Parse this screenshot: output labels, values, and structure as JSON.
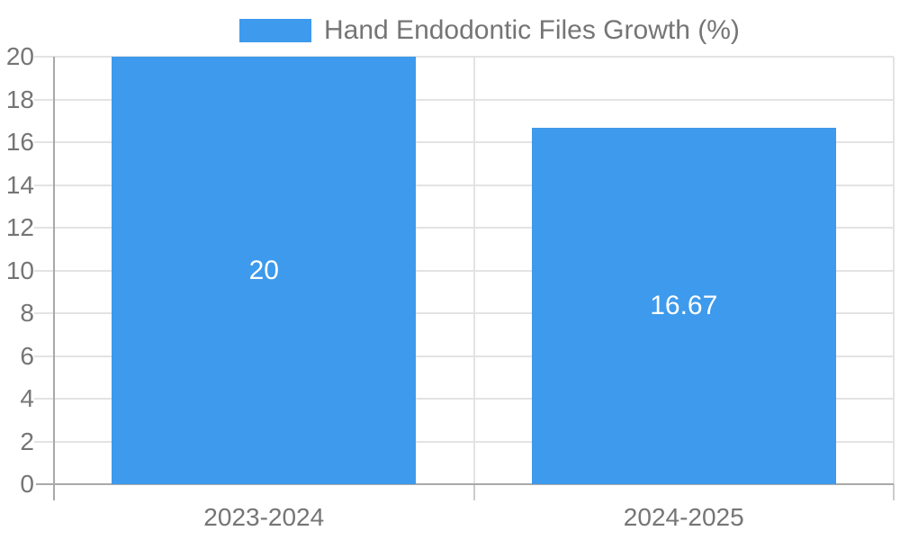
{
  "chart_data": {
    "type": "bar",
    "title": "Hand Endodontic Files Growth (%)",
    "categories": [
      "2023-2024",
      "2024-2025"
    ],
    "values": [
      20,
      16.67
    ],
    "value_labels": [
      "20",
      "16.67"
    ],
    "series": [
      {
        "name": "Hand Endodontic Files Growth (%)",
        "values": [
          20,
          16.67
        ]
      }
    ],
    "xlabel": "",
    "ylabel": "",
    "ylim": [
      0,
      20
    ],
    "yticks": [
      0,
      2,
      4,
      6,
      8,
      10,
      12,
      14,
      16,
      18,
      20
    ],
    "grid": true,
    "legend_position": "top-center",
    "colors": {
      "bar": "#3d9aec",
      "value_label": "#ffffff",
      "axis_text": "#757575",
      "legend_text": "#757575",
      "gridline": "#e3e3e3",
      "axis_line": "#a9a9a9",
      "tick": "#cccccc",
      "background": "#ffffff"
    }
  }
}
